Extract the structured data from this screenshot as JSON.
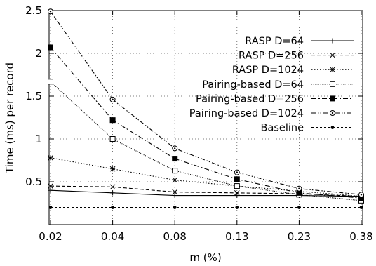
{
  "chart_data": {
    "type": "line",
    "xlabel": "m (%)",
    "ylabel": "Time (ms) per record",
    "categories": [
      "0.02",
      "0.04",
      "0.08",
      "0.13",
      "0.23",
      "0.38"
    ],
    "ylim": [
      0,
      2.5
    ],
    "yticks": [
      "0.5",
      "1",
      "1.5",
      "2",
      "2.5"
    ],
    "grid": true,
    "legend_position": "top-right",
    "series": [
      {
        "name": "RASP D=64",
        "values": [
          0.4,
          0.37,
          0.34,
          0.34,
          0.34,
          0.33
        ],
        "color": "#000000",
        "dash": "solid",
        "marker": "plus"
      },
      {
        "name": "RASP D=256",
        "values": [
          0.45,
          0.44,
          0.38,
          0.37,
          0.36,
          0.33
        ],
        "color": "#000000",
        "dash": "dashed",
        "marker": "cross"
      },
      {
        "name": "RASP D=1024",
        "values": [
          0.78,
          0.65,
          0.52,
          0.45,
          0.39,
          0.33
        ],
        "color": "#000000",
        "dash": "dotted",
        "marker": "star"
      },
      {
        "name": "Pairing-based D=64",
        "values": [
          1.67,
          1.0,
          0.63,
          0.45,
          0.35,
          0.28
        ],
        "color": "#000000",
        "dash": "dense-dotted",
        "marker": "open-square"
      },
      {
        "name": "Pairing-based D=256",
        "values": [
          2.07,
          1.22,
          0.77,
          0.53,
          0.37,
          0.31
        ],
        "color": "#000000",
        "dash": "dash-dot",
        "marker": "filled-square"
      },
      {
        "name": "Pairing-based D=1024",
        "values": [
          2.49,
          1.46,
          0.89,
          0.61,
          0.42,
          0.35
        ],
        "color": "#000000",
        "dash": "dash-dot-dot",
        "marker": "open-circle"
      },
      {
        "name": "Baseline",
        "values": [
          0.2,
          0.2,
          0.2,
          0.2,
          0.2,
          0.2
        ],
        "color": "#000000",
        "dash": "short-dashed",
        "marker": "dot"
      }
    ]
  }
}
